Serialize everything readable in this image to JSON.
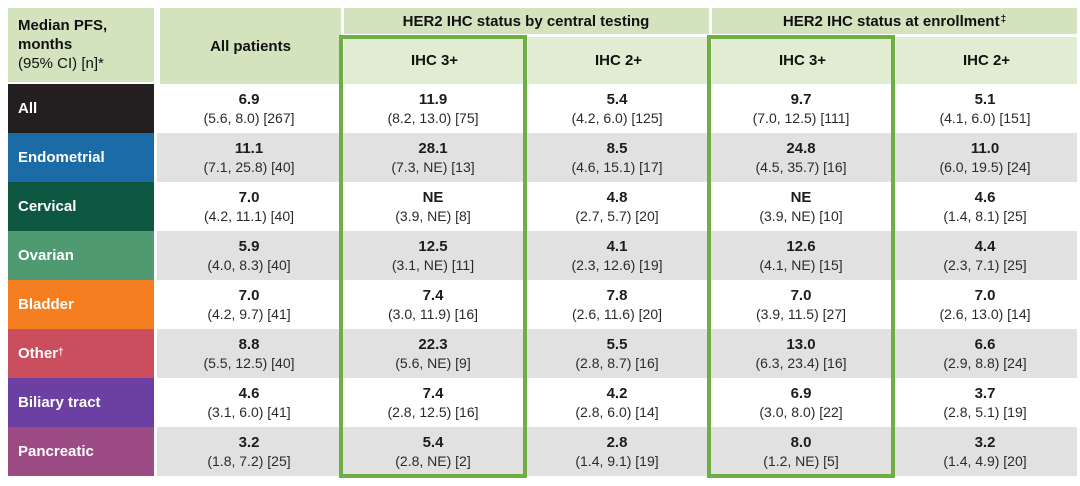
{
  "header": {
    "corner": {
      "line1": "Median PFS,",
      "line2": "months",
      "line3": "(95% CI) [n]*"
    },
    "all_patients": "All patients",
    "groups": [
      {
        "label": "HER2 IHC status by central testing",
        "sup": "",
        "sub": [
          "IHC 3+",
          "IHC 2+"
        ]
      },
      {
        "label": "HER2 IHC status at enrollment",
        "sup": "‡",
        "sub": [
          "IHC 3+",
          "IHC 2+"
        ]
      }
    ]
  },
  "column_keys": [
    "all-patients",
    "central-ihc3",
    "central-ihc2",
    "enrollment-ihc3",
    "enrollment-ihc2"
  ],
  "rows": [
    {
      "key": "all",
      "label": "All",
      "sup": "",
      "color": "#231f20",
      "cells": [
        {
          "value": "6.9",
          "ci": "(5.6, 8.0) [267]"
        },
        {
          "value": "11.9",
          "ci": "(8.2, 13.0) [75]"
        },
        {
          "value": "5.4",
          "ci": "(4.2, 6.0) [125]"
        },
        {
          "value": "9.7",
          "ci": "(7.0, 12.5) [111]"
        },
        {
          "value": "5.1",
          "ci": "(4.1, 6.0) [151]"
        }
      ]
    },
    {
      "key": "endometrial",
      "label": "Endometrial",
      "sup": "",
      "color": "#1a6ba6",
      "cells": [
        {
          "value": "11.1",
          "ci": "(7.1, 25.8) [40]"
        },
        {
          "value": "28.1",
          "ci": "(7.3, NE) [13]"
        },
        {
          "value": "8.5",
          "ci": "(4.6, 15.1) [17]"
        },
        {
          "value": "24.8",
          "ci": "(4.5, 35.7) [16]"
        },
        {
          "value": "11.0",
          "ci": "(6.0, 19.5) [24]"
        }
      ]
    },
    {
      "key": "cervical",
      "label": "Cervical",
      "sup": "",
      "color": "#0e5741",
      "cells": [
        {
          "value": "7.0",
          "ci": "(4.2, 11.1) [40]"
        },
        {
          "value": "NE",
          "ci": "(3.9, NE) [8]"
        },
        {
          "value": "4.8",
          "ci": "(2.7, 5.7) [20]"
        },
        {
          "value": "NE",
          "ci": "(3.9, NE) [10]"
        },
        {
          "value": "4.6",
          "ci": "(1.4, 8.1) [25]"
        }
      ]
    },
    {
      "key": "ovarian",
      "label": "Ovarian",
      "sup": "",
      "color": "#4f9a71",
      "cells": [
        {
          "value": "5.9",
          "ci": "(4.0, 8.3) [40]"
        },
        {
          "value": "12.5",
          "ci": "(3.1, NE) [11]"
        },
        {
          "value": "4.1",
          "ci": "(2.3, 12.6) [19]"
        },
        {
          "value": "12.6",
          "ci": "(4.1, NE) [15]"
        },
        {
          "value": "4.4",
          "ci": "(2.3, 7.1) [25]"
        }
      ]
    },
    {
      "key": "bladder",
      "label": "Bladder",
      "sup": "",
      "color": "#f57e20",
      "cells": [
        {
          "value": "7.0",
          "ci": "(4.2, 9.7) [41]"
        },
        {
          "value": "7.4",
          "ci": "(3.0, 11.9) [16]"
        },
        {
          "value": "7.8",
          "ci": "(2.6, 11.6) [20]"
        },
        {
          "value": "7.0",
          "ci": "(3.9, 11.5) [27]"
        },
        {
          "value": "7.0",
          "ci": "(2.6, 13.0) [14]"
        }
      ]
    },
    {
      "key": "other",
      "label": "Other",
      "sup": "†",
      "color": "#cb4e5f",
      "cells": [
        {
          "value": "8.8",
          "ci": "(5.5, 12.5) [40]"
        },
        {
          "value": "22.3",
          "ci": "(5.6, NE) [9]"
        },
        {
          "value": "5.5",
          "ci": "(2.8, 8.7) [16]"
        },
        {
          "value": "13.0",
          "ci": "(6.3, 23.4) [16]"
        },
        {
          "value": "6.6",
          "ci": "(2.9, 8.8) [24]"
        }
      ]
    },
    {
      "key": "biliary-tract",
      "label": "Biliary tract",
      "sup": "",
      "color": "#6c3fa3",
      "cells": [
        {
          "value": "4.6",
          "ci": "(3.1, 6.0) [41]"
        },
        {
          "value": "7.4",
          "ci": "(2.8, 12.5) [16]"
        },
        {
          "value": "4.2",
          "ci": "(2.8, 6.0) [14]"
        },
        {
          "value": "6.9",
          "ci": "(3.0, 8.0) [22]"
        },
        {
          "value": "3.7",
          "ci": "(2.8, 5.1) [19]"
        }
      ]
    },
    {
      "key": "pancreatic",
      "label": "Pancreatic",
      "sup": "",
      "color": "#9d4b85",
      "cells": [
        {
          "value": "3.2",
          "ci": "(1.8, 7.2) [25]"
        },
        {
          "value": "5.4",
          "ci": "(2.8, NE) [2]"
        },
        {
          "value": "2.8",
          "ci": "(1.4, 9.1) [19]"
        },
        {
          "value": "8.0",
          "ci": "(1.2, NE) [5]"
        },
        {
          "value": "3.2",
          "ci": "(1.4, 4.9) [20]"
        }
      ]
    }
  ],
  "colors": {
    "header-green": "#d2e3bd",
    "subheader-green": "#e0edd2",
    "highlight-border": "#6fae44",
    "row-stripe": "#e1e1e1",
    "text": "#1f1f1f"
  },
  "chart_data": {
    "type": "table",
    "title": "Median PFS, months (95% CI) [n]*",
    "column_groups": [
      "All patients",
      "HER2 IHC status by central testing",
      "HER2 IHC status at enrollment‡"
    ],
    "columns": [
      "All patients",
      "IHC 3+ (central testing)",
      "IHC 2+ (central testing)",
      "IHC 3+ (at enrollment)",
      "IHC 2+ (at enrollment)"
    ],
    "cell_format": [
      "median",
      "ci_low",
      "ci_high",
      "n"
    ],
    "rows": [
      {
        "cohort": "All",
        "cells": [
          [
            6.9,
            5.6,
            8.0,
            267
          ],
          [
            11.9,
            8.2,
            13.0,
            75
          ],
          [
            5.4,
            4.2,
            6.0,
            125
          ],
          [
            9.7,
            7.0,
            12.5,
            111
          ],
          [
            5.1,
            4.1,
            6.0,
            151
          ]
        ]
      },
      {
        "cohort": "Endometrial",
        "cells": [
          [
            11.1,
            7.1,
            25.8,
            40
          ],
          [
            28.1,
            7.3,
            "NE",
            13
          ],
          [
            8.5,
            4.6,
            15.1,
            17
          ],
          [
            24.8,
            4.5,
            35.7,
            16
          ],
          [
            11.0,
            6.0,
            19.5,
            24
          ]
        ]
      },
      {
        "cohort": "Cervical",
        "cells": [
          [
            7.0,
            4.2,
            11.1,
            40
          ],
          [
            "NE",
            3.9,
            "NE",
            8
          ],
          [
            4.8,
            2.7,
            5.7,
            20
          ],
          [
            "NE",
            3.9,
            "NE",
            10
          ],
          [
            4.6,
            1.4,
            8.1,
            25
          ]
        ]
      },
      {
        "cohort": "Ovarian",
        "cells": [
          [
            5.9,
            4.0,
            8.3,
            40
          ],
          [
            12.5,
            3.1,
            "NE",
            11
          ],
          [
            4.1,
            2.3,
            12.6,
            19
          ],
          [
            12.6,
            4.1,
            "NE",
            15
          ],
          [
            4.4,
            2.3,
            7.1,
            25
          ]
        ]
      },
      {
        "cohort": "Bladder",
        "cells": [
          [
            7.0,
            4.2,
            9.7,
            41
          ],
          [
            7.4,
            3.0,
            11.9,
            16
          ],
          [
            7.8,
            2.6,
            11.6,
            20
          ],
          [
            7.0,
            3.9,
            11.5,
            27
          ],
          [
            7.0,
            2.6,
            13.0,
            14
          ]
        ]
      },
      {
        "cohort": "Other†",
        "cells": [
          [
            8.8,
            5.5,
            12.5,
            40
          ],
          [
            22.3,
            5.6,
            "NE",
            9
          ],
          [
            5.5,
            2.8,
            8.7,
            16
          ],
          [
            13.0,
            6.3,
            23.4,
            16
          ],
          [
            6.6,
            2.9,
            8.8,
            24
          ]
        ]
      },
      {
        "cohort": "Biliary tract",
        "cells": [
          [
            4.6,
            3.1,
            6.0,
            41
          ],
          [
            7.4,
            2.8,
            12.5,
            16
          ],
          [
            4.2,
            2.8,
            6.0,
            14
          ],
          [
            6.9,
            3.0,
            8.0,
            22
          ],
          [
            3.7,
            2.8,
            5.1,
            19
          ]
        ]
      },
      {
        "cohort": "Pancreatic",
        "cells": [
          [
            3.2,
            1.8,
            7.2,
            25
          ],
          [
            5.4,
            2.8,
            "NE",
            2
          ],
          [
            2.8,
            1.4,
            9.1,
            19
          ],
          [
            8.0,
            1.2,
            "NE",
            5
          ],
          [
            3.2,
            1.4,
            4.9,
            20
          ]
        ]
      }
    ],
    "highlighted_columns": [
      "IHC 3+ (central testing)",
      "IHC 3+ (at enrollment)"
    ],
    "layout": {
      "row_striping": true,
      "highlight_box_color": "#6fae44"
    }
  }
}
